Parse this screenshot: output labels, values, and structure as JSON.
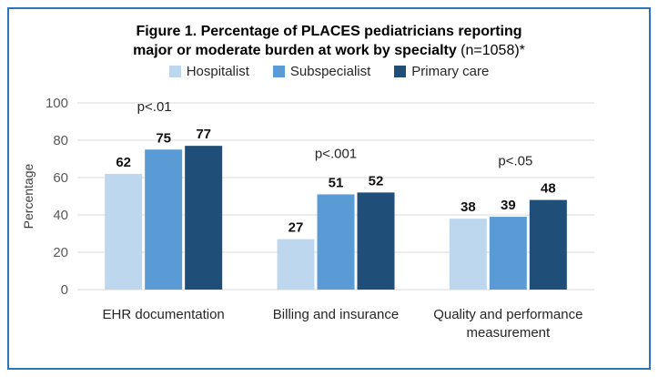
{
  "figure": {
    "title_line1": "Figure 1. Percentage of PLACES pediatricians reporting",
    "title_line2_bold": "major or moderate burden at work by specialty",
    "title_line2_normal": " (n=1058)*"
  },
  "chart_data": {
    "type": "bar",
    "title": "Figure 1. Percentage of PLACES pediatricians reporting major or moderate burden at work by specialty (n=1058)*",
    "categories": [
      "EHR documentation",
      "Billing and insurance",
      "Quality and performance measurement"
    ],
    "series": [
      {
        "name": "Hospitalist",
        "color": "#BDD7EE",
        "values": [
          62,
          27,
          38
        ]
      },
      {
        "name": "Subspecialist",
        "color": "#5B9BD5",
        "values": [
          75,
          51,
          39
        ]
      },
      {
        "name": "Primary care",
        "color": "#1F4E79",
        "values": [
          77,
          52,
          48
        ]
      }
    ],
    "annotations": [
      {
        "text": "p<.01",
        "category": "EHR documentation"
      },
      {
        "text": "p<.001",
        "category": "Billing and insurance"
      },
      {
        "text": "p<.05",
        "category": "Quality and performance measurement"
      }
    ],
    "xlabel": "",
    "ylabel": "Percentage",
    "ylim": [
      0,
      100
    ],
    "yticks": [
      0,
      20,
      40,
      60,
      80,
      100
    ],
    "grid": true,
    "legend_position": "top"
  },
  "style": {
    "border_color": "#2E75B6",
    "gridline_color": "#D9D9D9",
    "tick_label_color": "#595959",
    "axis_label_color": "#404040",
    "data_label_color": "#111111",
    "annotation_color": "#262626"
  }
}
